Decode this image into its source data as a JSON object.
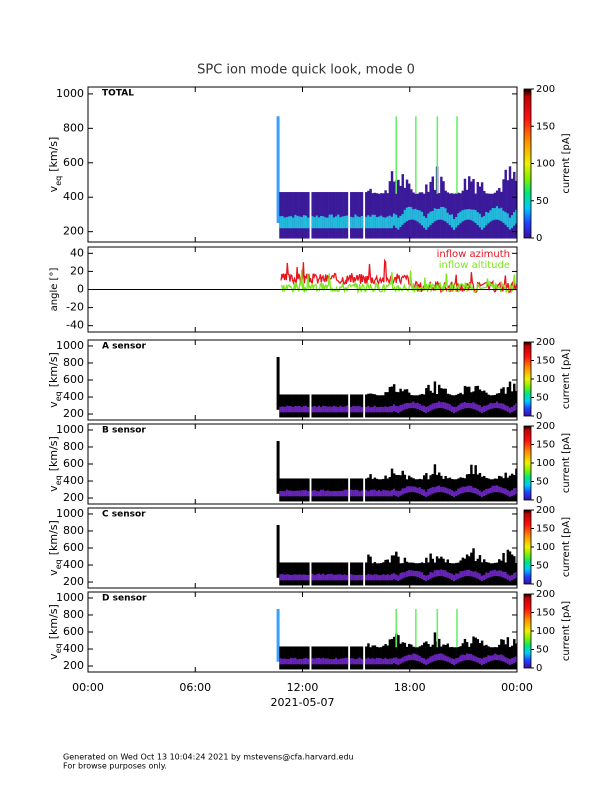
{
  "title": "SPC ion mode quick look, mode 0",
  "panels": [
    {
      "type": "spectrogram",
      "label": "TOTAL",
      "ylabel": {
        "main": "v",
        "sub": "eq",
        "unit": "[km/s]"
      },
      "ylim": [
        140,
        1040
      ],
      "yticks": [
        200,
        400,
        600,
        800,
        1000
      ],
      "colorbar": {
        "label": "current [pA]",
        "lim": [
          0,
          200
        ],
        "ticks": [
          0,
          50,
          100,
          150,
          200
        ]
      }
    },
    {
      "type": "angle",
      "ylabel": {
        "main": "angle [°]"
      },
      "ylim": [
        -47,
        47
      ],
      "yticks": [
        -40,
        -20,
        0,
        20,
        40
      ],
      "legend": [
        {
          "name": "inflow azimuth",
          "color": "#e8141e"
        },
        {
          "name": "inflow altitude",
          "color": "#7ee61e"
        }
      ]
    },
    {
      "type": "spectrogram",
      "label": "A sensor",
      "ylabel": {
        "main": "v",
        "sub": "eq",
        "unit": "[km/s]"
      },
      "ylim": [
        130,
        1070
      ],
      "yticks": [
        200,
        400,
        600,
        800,
        1000
      ],
      "colorbar": {
        "label": "current [pA]",
        "lim": [
          0,
          200
        ],
        "ticks": [
          0,
          50,
          100,
          150,
          200
        ]
      }
    },
    {
      "type": "spectrogram",
      "label": "B sensor",
      "ylabel": {
        "main": "v",
        "sub": "eq",
        "unit": "[km/s]"
      },
      "ylim": [
        130,
        1070
      ],
      "yticks": [
        200,
        400,
        600,
        800,
        1000
      ],
      "colorbar": {
        "label": "current [pA]",
        "lim": [
          0,
          200
        ],
        "ticks": [
          0,
          50,
          100,
          150,
          200
        ]
      }
    },
    {
      "type": "spectrogram",
      "label": "C sensor",
      "ylabel": {
        "main": "v",
        "sub": "eq",
        "unit": "[km/s]"
      },
      "ylim": [
        130,
        1070
      ],
      "yticks": [
        200,
        400,
        600,
        800,
        1000
      ],
      "colorbar": {
        "label": "current [pA]",
        "lim": [
          0,
          200
        ],
        "ticks": [
          0,
          50,
          100,
          150,
          200
        ]
      }
    },
    {
      "type": "spectrogram",
      "label": "D sensor",
      "ylabel": {
        "main": "v",
        "sub": "eq",
        "unit": "[km/s]"
      },
      "ylim": [
        130,
        1070
      ],
      "yticks": [
        200,
        400,
        600,
        800,
        1000
      ],
      "colorbar": {
        "label": "current [pA]",
        "lim": [
          0,
          200
        ],
        "ticks": [
          0,
          50,
          100,
          150,
          200
        ]
      }
    }
  ],
  "xaxis": {
    "xlim": [
      0,
      24
    ],
    "xticks": [
      {
        "value": 0,
        "label": "00:00"
      },
      {
        "value": 6,
        "label": "06:00"
      },
      {
        "value": 12,
        "label": "12:00"
      },
      {
        "value": 18,
        "label": "18:00"
      },
      {
        "value": 24,
        "label": "00:00"
      }
    ],
    "label": "2021-05-07"
  },
  "footer": [
    "Generated on Wed Oct 13 10:04:24 2021 by mstevens@cfa.harvard.edu",
    "For browse purposes only."
  ]
}
